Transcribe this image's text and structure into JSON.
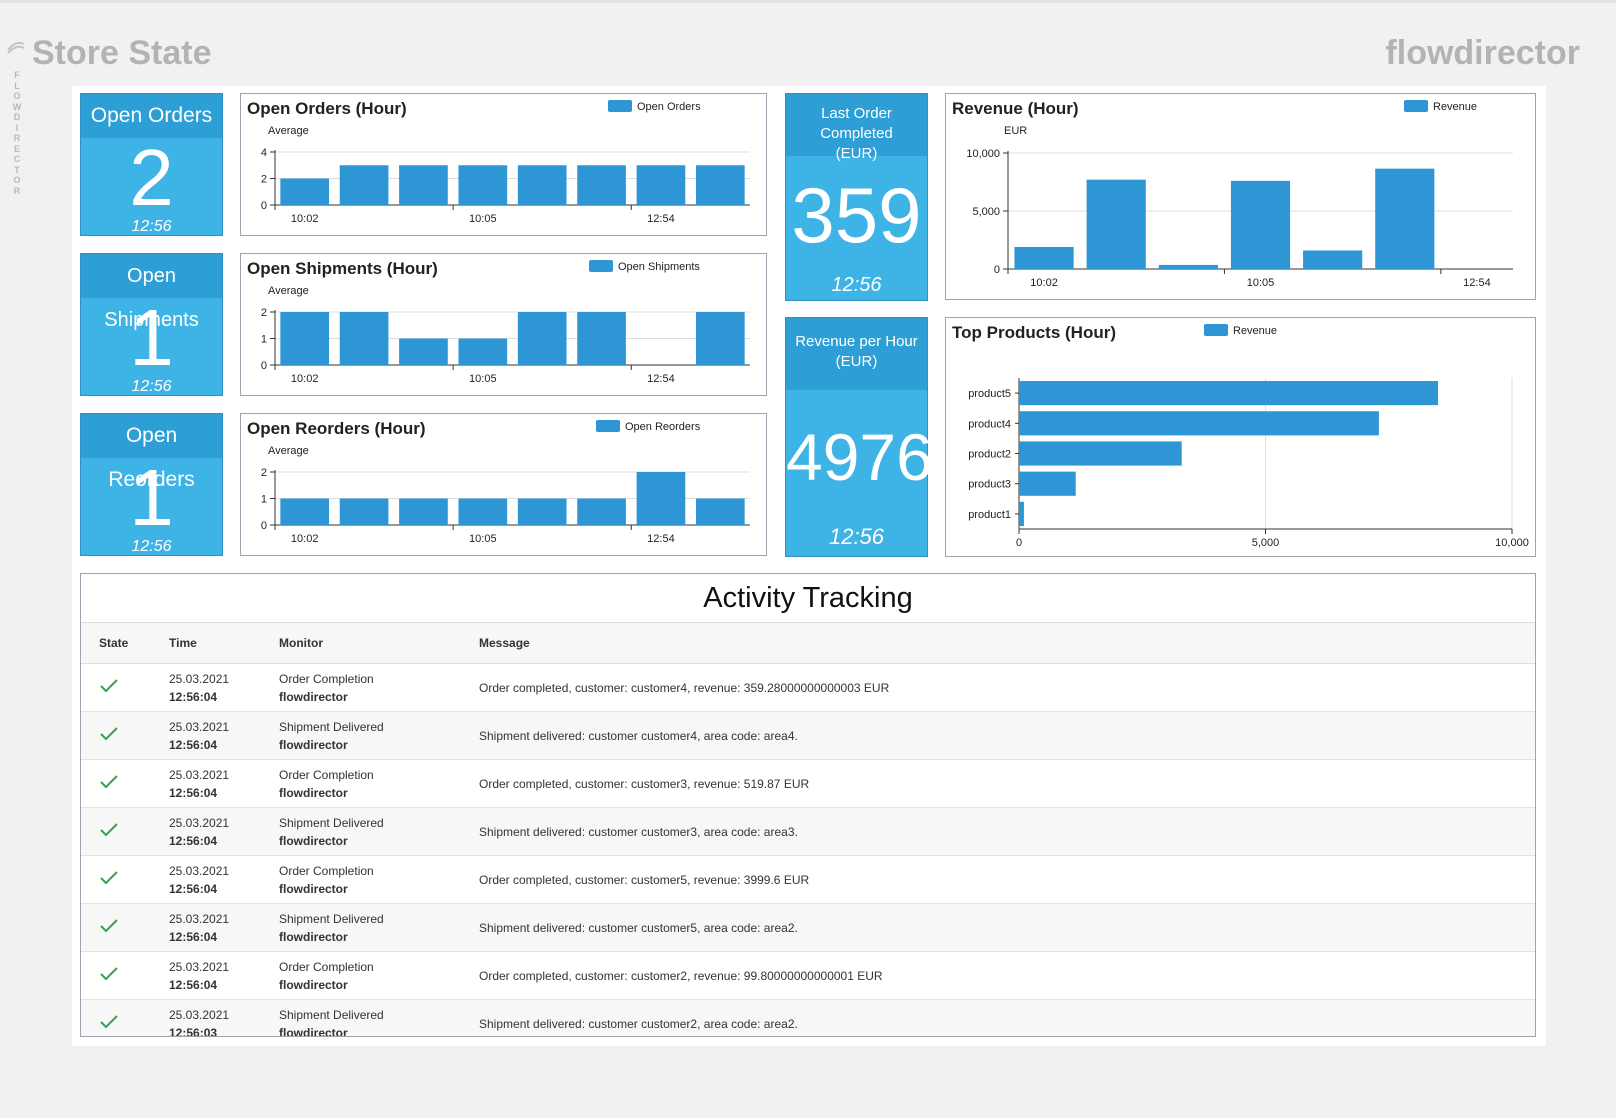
{
  "header": {
    "title": "Store State",
    "brand": "flowdirector",
    "vertical_label": [
      "F",
      "L",
      "O",
      "W",
      "D",
      "I",
      "R",
      "E",
      "C",
      "T",
      "O",
      "R"
    ]
  },
  "kpi": [
    {
      "label": "Open Orders",
      "value": "2",
      "time": "12:56"
    },
    {
      "label": "Open Shipments",
      "value": "1",
      "time": "12:56"
    },
    {
      "label": "Open Reorders",
      "value": "1",
      "time": "12:56"
    }
  ],
  "kpi2": [
    {
      "label": "Last Order Completed (EUR)",
      "label_lines": [
        "Last Order Completed",
        "(EUR)"
      ],
      "value": "359",
      "time": "12:56"
    },
    {
      "label": "Revenue per Hour (EUR)",
      "label_lines": [
        "Revenue per Hour",
        "(EUR)"
      ],
      "value": "4976",
      "time": "12:56"
    }
  ],
  "colors": {
    "bar": "#2f96d6",
    "tile": "#3eb3e6",
    "tile_head": "#2d9fd6",
    "check": "#2da44e"
  },
  "chart_data": [
    {
      "type": "bar",
      "title": "Open Orders (Hour)",
      "legend": "Open Orders",
      "subtitle": "Average",
      "values": [
        2,
        3,
        3,
        3,
        3,
        3,
        3,
        3
      ],
      "ylim": [
        0,
        4
      ],
      "yticks": [
        "0",
        "2",
        "4"
      ],
      "ytick_values": [
        0,
        2,
        4
      ],
      "xticks": [
        "10:02",
        "10:05",
        "12:54"
      ]
    },
    {
      "type": "bar",
      "title": "Open Shipments (Hour)",
      "legend": "Open Shipments",
      "subtitle": "Average",
      "values": [
        2,
        2,
        1,
        1,
        2,
        2,
        0,
        2
      ],
      "ylim": [
        0,
        2
      ],
      "yticks": [
        "0",
        "1",
        "2"
      ],
      "ytick_values": [
        0,
        1,
        2
      ],
      "xticks": [
        "10:02",
        "10:05",
        "12:54"
      ]
    },
    {
      "type": "bar",
      "title": "Open Reorders (Hour)",
      "legend": "Open Reorders",
      "subtitle": "Average",
      "values": [
        1,
        1,
        1,
        1,
        1,
        1,
        2,
        1
      ],
      "ylim": [
        0,
        2
      ],
      "yticks": [
        "0",
        "1",
        "2"
      ],
      "ytick_values": [
        0,
        1,
        2
      ],
      "xticks": [
        "10:02",
        "10:05",
        "12:54"
      ]
    },
    {
      "type": "bar",
      "title": "Revenue (Hour)",
      "legend": "Revenue",
      "subtitle": "EUR",
      "values": [
        1900,
        7700,
        350,
        7600,
        1600,
        8650,
        0
      ],
      "ylim": [
        0,
        10000
      ],
      "yticks": [
        "0",
        "5,000",
        "10,000"
      ],
      "ytick_values": [
        0,
        5000,
        10000
      ],
      "xticks": [
        "10:02",
        "10:05",
        "12:54"
      ]
    },
    {
      "type": "bar",
      "orientation": "horizontal",
      "title": "Top Products (Hour)",
      "legend": "Revenue",
      "categories": [
        "product5",
        "product4",
        "product2",
        "product3",
        "product1"
      ],
      "values": [
        8500,
        7300,
        3300,
        1150,
        100
      ],
      "xlim": [
        0,
        10000
      ],
      "xticks": [
        "0",
        "5,000",
        "10,000"
      ],
      "xtick_values": [
        0,
        5000,
        10000
      ]
    }
  ],
  "activity": {
    "title": "Activity Tracking",
    "columns": {
      "state": "State",
      "time": "Time",
      "monitor": "Monitor",
      "message": "Message"
    },
    "rows": [
      {
        "date": "25.03.2021",
        "time": "12:56:04",
        "monitor": "Order Completion",
        "source": "flowdirector",
        "message": "Order completed, customer: customer4, revenue: 359.28000000000003 EUR"
      },
      {
        "date": "25.03.2021",
        "time": "12:56:04",
        "monitor": "Shipment Delivered",
        "source": "flowdirector",
        "message": "Shipment delivered: customer customer4, area code: area4."
      },
      {
        "date": "25.03.2021",
        "time": "12:56:04",
        "monitor": "Order Completion",
        "source": "flowdirector",
        "message": "Order completed, customer: customer3, revenue: 519.87 EUR"
      },
      {
        "date": "25.03.2021",
        "time": "12:56:04",
        "monitor": "Shipment Delivered",
        "source": "flowdirector",
        "message": "Shipment delivered: customer customer3, area code: area3."
      },
      {
        "date": "25.03.2021",
        "time": "12:56:04",
        "monitor": "Order Completion",
        "source": "flowdirector",
        "message": "Order completed, customer: customer5, revenue: 3999.6 EUR"
      },
      {
        "date": "25.03.2021",
        "time": "12:56:04",
        "monitor": "Shipment Delivered",
        "source": "flowdirector",
        "message": "Shipment delivered: customer customer5, area code: area2."
      },
      {
        "date": "25.03.2021",
        "time": "12:56:04",
        "monitor": "Order Completion",
        "source": "flowdirector",
        "message": "Order completed, customer: customer2, revenue: 99.80000000000001 EUR"
      },
      {
        "date": "25.03.2021",
        "time": "12:56:03",
        "monitor": "Shipment Delivered",
        "source": "flowdirector",
        "message": "Shipment delivered: customer customer2, area code: area2."
      }
    ]
  }
}
